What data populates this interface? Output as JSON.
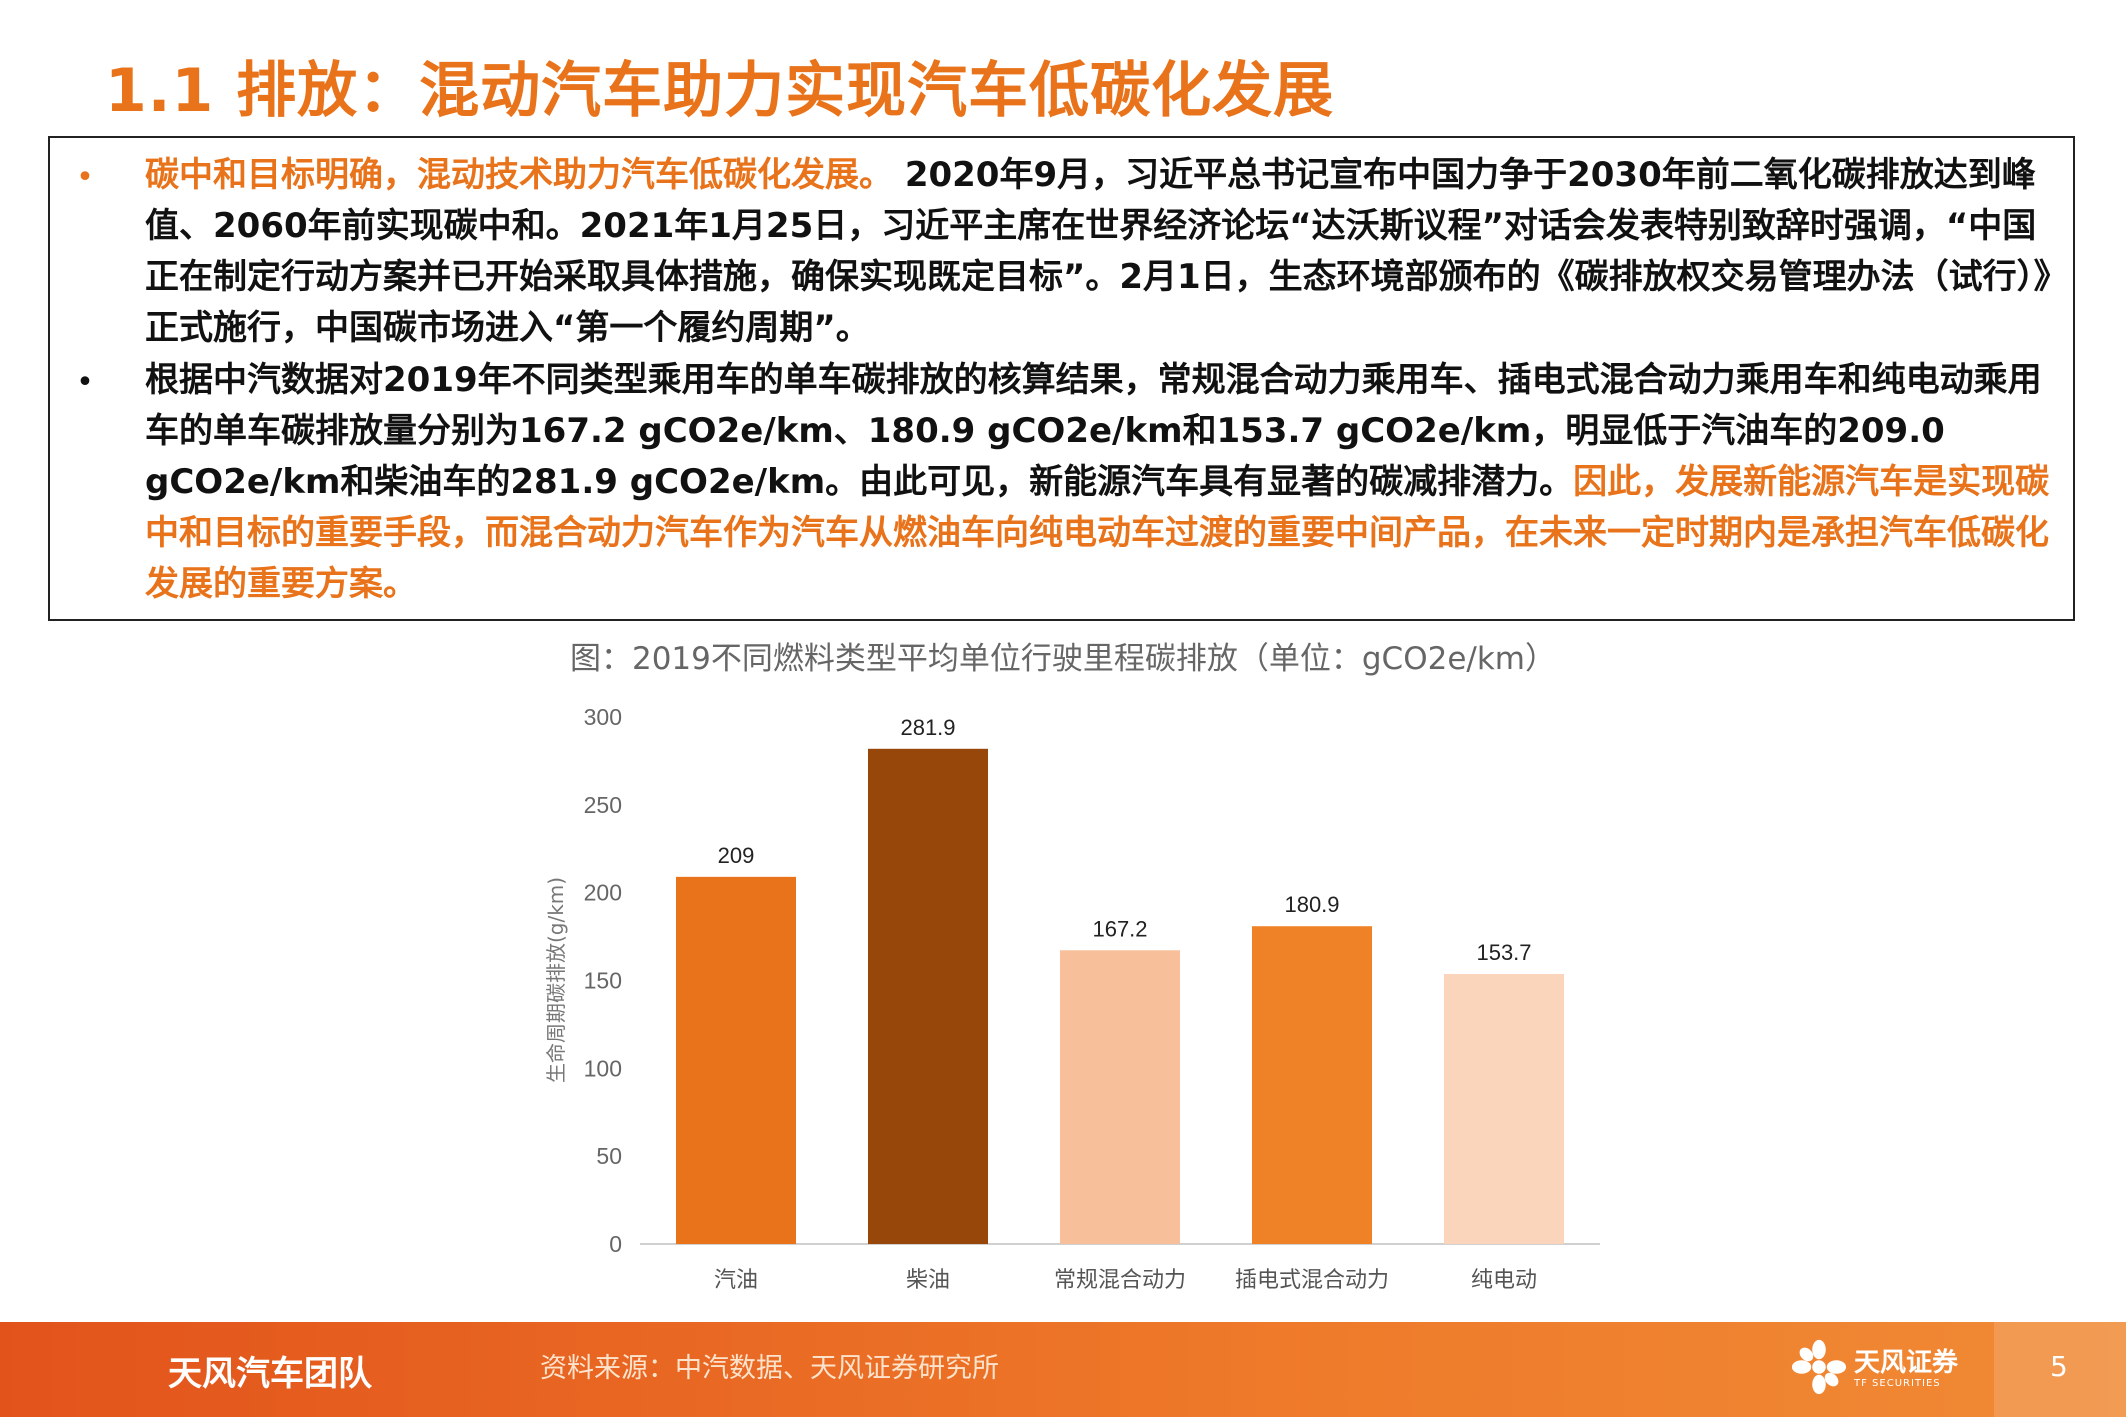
{
  "page": {
    "title": "1.1 排放：混动汽车助力实现汽车低碳化发展",
    "accent_color": "#E8731A"
  },
  "textbox": {
    "bullets": [
      {
        "marker": "•",
        "highlight": "碳中和目标明确，混动技术助力汽车低碳化发展。",
        "text": " 2020年9月，习近平总书记宣布中国力争于2030年前二氧化碳排放达到峰值、2060年前实现碳中和。2021年1月25日，习近平主席在世界经济论坛“达沃斯议程”对话会发表特别致辞时强调，“中国正在制定行动方案并已开始采取具体措施，确保实现既定目标”。2月1日，生态环境部颁布的《碳排放权交易管理办法（试行）》正式施行，中国碳市场进入“第一个履约周期”。"
      },
      {
        "marker": "•",
        "text": "根据中汽数据对2019年不同类型乘用车的单车碳排放的核算结果，常规混合动力乘用车、插电式混合动力乘用车和纯电动乘用车的单车碳排放量分别为167.2 gCO2e/km、180.9 gCO2e/km和153.7 gCO2e/km，明显低于汽油车的209.0 gCO2e/km和柴油车的281.9 gCO2e/km。由此可见，新能源汽车具有显著的碳减排潜力。",
        "highlight": "因此，发展新能源汽车是实现碳中和目标的重要手段，而混合动力汽车作为汽车从燃油车向纯电动车过渡的重要中间产品，在未来一定时期内是承担汽车低碳化发展的重要方案。"
      }
    ]
  },
  "chart_caption": "图：2019不同燃料类型平均单位行驶里程碳排放（单位：gCO2e/km）",
  "chart_data": {
    "type": "bar",
    "categories": [
      "汽油",
      "柴油",
      "常规混合动力",
      "插电式混合动力",
      "纯电动"
    ],
    "values": [
      209,
      281.9,
      167.2,
      180.9,
      153.7
    ],
    "value_labels": [
      "209",
      "281.9",
      "167.2",
      "180.9",
      "153.7"
    ],
    "bar_colors": [
      "#E8731A",
      "#97470A",
      "#F8C09A",
      "#EF8226",
      "#FAD5BB"
    ],
    "ylabel": "生命周期碳排放(g/km)",
    "ylim": [
      0,
      300
    ],
    "yticks": [
      0,
      50,
      100,
      150,
      200,
      250,
      300
    ],
    "grid": false,
    "legend": "none"
  },
  "footer": {
    "team": "天风汽车团队",
    "source": "资料来源：中汽数据、天风证券研究所",
    "logo_cn": "天风证券",
    "logo_en": "TF SECURITIES",
    "page_number": "5"
  }
}
